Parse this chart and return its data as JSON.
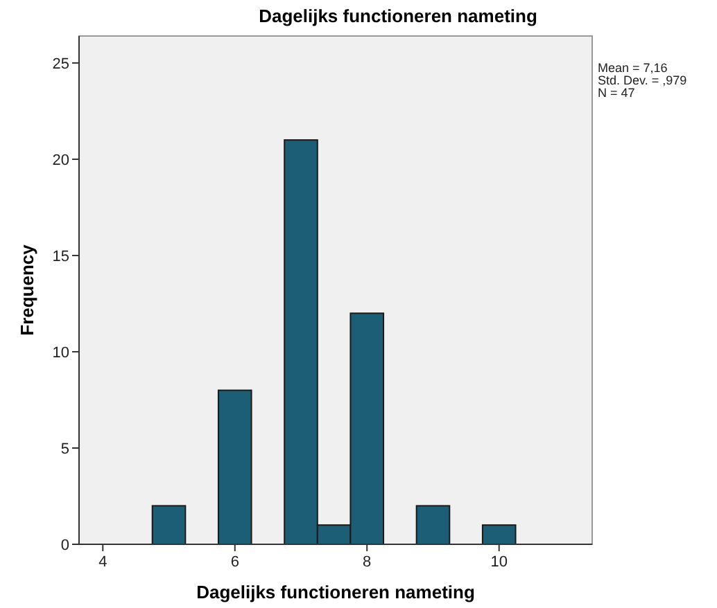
{
  "chart_data": {
    "type": "histogram",
    "title": "Dagelijks functioneren nameting",
    "xlabel": "Dagelijks functioneren nameting",
    "ylabel": "Frequency",
    "bins": [
      4.75,
      5.25,
      5.75,
      6.25,
      6.75,
      7.25,
      7.75,
      8.25,
      8.75,
      9.25,
      9.75,
      10.25
    ],
    "values": [
      2,
      0,
      8,
      0,
      21,
      1,
      12,
      0,
      2,
      0,
      1
    ],
    "color": "#1c5e75",
    "xlim": [
      3.64,
      11.41
    ],
    "xticks": [
      4,
      6,
      8,
      10
    ],
    "ylim": [
      0,
      26.4
    ],
    "yticks": [
      0,
      5,
      10,
      15,
      20,
      25
    ],
    "grid": false,
    "annotations": [
      "Mean = 7,16",
      "Std. Dev. = ,979",
      "N = 47"
    ]
  }
}
